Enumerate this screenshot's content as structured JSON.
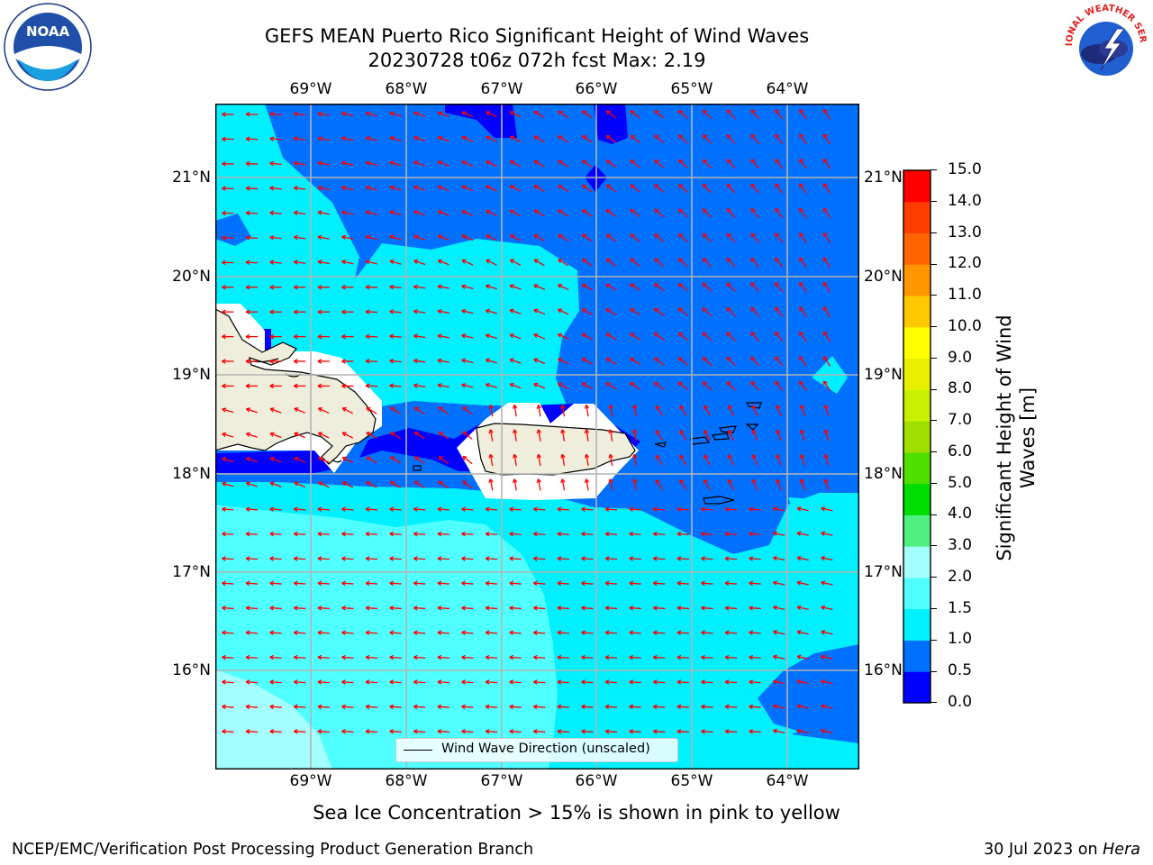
{
  "title_line1": "GEFS MEAN Puerto Rico Significant Height of Wind Waves",
  "title_line2": "20230728 t06z 072h fcst   Max: 2.19",
  "lon_labels": [
    "69°W",
    "68°W",
    "67°W",
    "66°W",
    "65°W",
    "64°W"
  ],
  "lat_labels": [
    "21°N",
    "20°N",
    "19°N",
    "18°N",
    "17°N",
    "16°N"
  ],
  "legend_label": "Wind Wave Direction (unscaled)",
  "colorbar": {
    "label": "Significant Height of Wind Waves [m]",
    "ticks": [
      "0.0",
      "0.5",
      "1.0",
      "1.5",
      "2.0",
      "3.0",
      "4.0",
      "5.0",
      "6.0",
      "7.0",
      "8.0",
      "9.0",
      "10.0",
      "11.0",
      "12.0",
      "13.0",
      "14.0",
      "15.0"
    ],
    "colors": [
      "#0000ff",
      "#0070ff",
      "#00f0ff",
      "#50ffff",
      "#a4ffff",
      "#50f080",
      "#00dd00",
      "#50e000",
      "#a0e000",
      "#c8f000",
      "#e8f000",
      "#ffff00",
      "#ffc800",
      "#ff9600",
      "#ff6400",
      "#ff3c00",
      "#ff0000"
    ]
  },
  "map_colors": {
    "band_0_0_5": "#0000ff",
    "band_0_5_1_0": "#0070ff",
    "band_1_0_1_5": "#00f0ff",
    "band_1_5_2_0": "#50ffff",
    "band_2_0_3_0": "#a4ffff",
    "land": "#efeedd",
    "arrow": "#ff0000"
  },
  "logos": {
    "left": "NOAA",
    "right": "NATIONAL WEATHER SERVICE"
  },
  "footer_note": "Sea Ice Concentration > 15% is shown in pink to yellow",
  "footer_left": "NCEP/EMC/Verification Post Processing Product Generation Branch",
  "footer_right_date": "30 Jul 2023 on ",
  "footer_right_machine": "Hera"
}
